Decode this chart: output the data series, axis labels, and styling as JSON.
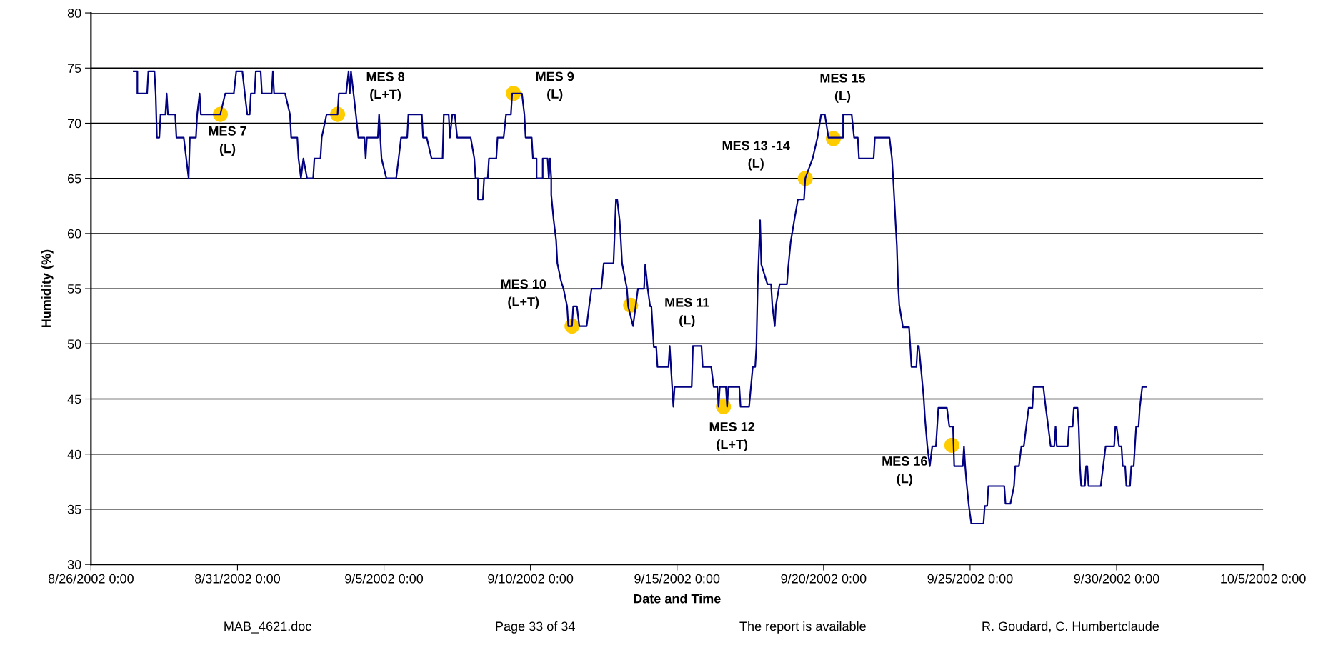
{
  "chart_data": {
    "type": "line",
    "xlabel": "Date and Time",
    "ylabel": "Humidity (%)",
    "xlim": [
      "2002-08-26",
      "2002-10-05"
    ],
    "xticks": [
      {
        "value": "2002-08-26",
        "label": "8/26/2002 0:00"
      },
      {
        "value": "2002-08-31",
        "label": "8/31/2002 0:00"
      },
      {
        "value": "2002-09-05",
        "label": "9/5/2002 0:00"
      },
      {
        "value": "2002-09-10",
        "label": "9/10/2002 0:00"
      },
      {
        "value": "2002-09-15",
        "label": "9/15/2002 0:00"
      },
      {
        "value": "2002-09-20",
        "label": "9/20/2002 0:00"
      },
      {
        "value": "2002-09-25",
        "label": "9/25/2002 0:00"
      },
      {
        "value": "2002-09-30",
        "label": "9/30/2002 0:00"
      },
      {
        "value": "2002-10-05",
        "label": "10/5/2002 0:00"
      }
    ],
    "ylim": [
      30,
      80
    ],
    "yticks": [
      30,
      35,
      40,
      45,
      50,
      55,
      60,
      65,
      70,
      75,
      80
    ],
    "grid": "y",
    "legend": false,
    "series": [
      {
        "color": "#000080",
        "marker": "none",
        "line_style": "solid",
        "x": [
          "2002-08-27T11:00",
          "2002-08-27T14:00",
          "2002-08-27T14:00",
          "2002-08-27T22:00",
          "2002-08-27T23:00",
          "2002-08-28T04:00",
          "2002-08-28T05:00",
          "2002-08-28T06:00",
          "2002-08-28T08:00",
          "2002-08-28T09:00",
          "2002-08-28T13:00",
          "2002-08-28T14:00",
          "2002-08-28T15:00",
          "2002-08-28T21:00",
          "2002-08-28T22:00",
          "2002-08-29T04:00",
          "2002-08-29T08:00",
          "2002-08-29T09:00",
          "2002-08-29T14:00",
          "2002-08-29T15:00",
          "2002-08-29T17:00",
          "2002-08-29T18:00",
          "2002-08-30T03:00",
          "2002-08-30T10:00",
          "2002-08-30T14:00",
          "2002-08-30T21:00",
          "2002-08-30T23:00",
          "2002-08-31T04:00",
          "2002-08-31T06:00",
          "2002-08-31T08:00",
          "2002-08-31T10:00",
          "2002-08-31T11:00",
          "2002-08-31T14:00",
          "2002-08-31T15:00",
          "2002-08-31T19:00",
          "2002-08-31T20:00",
          "2002-09-01T04:00",
          "2002-09-01T05:00",
          "2002-09-01T06:00",
          "2002-09-01T15:00",
          "2002-09-01T19:00",
          "2002-09-01T20:00",
          "2002-09-02T01:00",
          "2002-09-02T02:00",
          "2002-09-02T04:00",
          "2002-09-02T06:00",
          "2002-09-02T09:00",
          "2002-09-02T14:00",
          "2002-09-02T15:00",
          "2002-09-02T20:00",
          "2002-09-02T21:00",
          "2002-09-03T01:00",
          "2002-09-03T10:00",
          "2002-09-03T11:00",
          "2002-09-03T17:00",
          "2002-09-03T19:00",
          "2002-09-03T20:00",
          "2002-09-03T21:00",
          "2002-09-04T01:00",
          "2002-09-04T03:00",
          "2002-09-04T08:00",
          "2002-09-04T09:00",
          "2002-09-04T10:00",
          "2002-09-04T19:00",
          "2002-09-04T20:00",
          "2002-09-04T21:00",
          "2002-09-04T22:00",
          "2002-09-05T02:00",
          "2002-09-05T10:00",
          "2002-09-05T12:00",
          "2002-09-05T14:00",
          "2002-09-05T19:00",
          "2002-09-05T20:00",
          "2002-09-06T07:00",
          "2002-09-06T08:00",
          "2002-09-06T11:00",
          "2002-09-06T15:00",
          "2002-09-07T00:00",
          "2002-09-07T01:00",
          "2002-09-07T05:00",
          "2002-09-07T06:00",
          "2002-09-07T08:00",
          "2002-09-07T10:00",
          "2002-09-07T12:00",
          "2002-09-07T23:00",
          "2002-09-08T02:00",
          "2002-09-08T03:00",
          "2002-09-08T05:00",
          "2002-09-08T05:00",
          "2002-09-08T09:00",
          "2002-09-08T10:00",
          "2002-09-08T13:00",
          "2002-09-08T14:00",
          "2002-09-08T20:00",
          "2002-09-08T21:00",
          "2002-09-09T02:00",
          "2002-09-09T04:00",
          "2002-09-09T08:00",
          "2002-09-09T09:00",
          "2002-09-09T17:00",
          "2002-09-09T19:00",
          "2002-09-09T20:00",
          "2002-09-10T01:00",
          "2002-09-10T02:00",
          "2002-09-10T05:00",
          "2002-09-10T05:00",
          "2002-09-10T10:00",
          "2002-09-10T10:00",
          "2002-09-10T14:00",
          "2002-09-10T15:00",
          "2002-09-10T16:00",
          "2002-09-10T17:00",
          "2002-09-10T17:00",
          "2002-09-10T19:00",
          "2002-09-10T21:00",
          "2002-09-10T22:00",
          "2002-09-11T01:00",
          "2002-09-11T03:00",
          "2002-09-11T06:00",
          "2002-09-11T07:00",
          "2002-09-11T10:00",
          "2002-09-11T11:00",
          "2002-09-11T14:00",
          "2002-09-11T16:00",
          "2002-09-11T22:00",
          "2002-09-12T00:00",
          "2002-09-12T02:00",
          "2002-09-12T10:00",
          "2002-09-12T12:00",
          "2002-09-12T20:00",
          "2002-09-12T22:00",
          "2002-09-12T23:00",
          "2002-09-13T01:00",
          "2002-09-13T02:00",
          "2002-09-13T03:00",
          "2002-09-13T07:00",
          "2002-09-13T08:00",
          "2002-09-13T12:00",
          "2002-09-13T16:00",
          "2002-09-13T21:00",
          "2002-09-13T22:00",
          "2002-09-14T00:00",
          "2002-09-14T02:00",
          "2002-09-14T03:00",
          "2002-09-14T05:00",
          "2002-09-14T07:00",
          "2002-09-14T08:00",
          "2002-09-14T17:00",
          "2002-09-14T18:00",
          "2002-09-14T19:00",
          "2002-09-14T21:00",
          "2002-09-14T22:00",
          "2002-09-15T12:00",
          "2002-09-15T13:00",
          "2002-09-15T20:00",
          "2002-09-15T21:00",
          "2002-09-16T04:00",
          "2002-09-16T06:00",
          "2002-09-16T09:00",
          "2002-09-16T10:00",
          "2002-09-16T11:00",
          "2002-09-16T16:00",
          "2002-09-16T17:00",
          "2002-09-16T18:00",
          "2002-09-17T03:00",
          "2002-09-17T04:00",
          "2002-09-17T11:00",
          "2002-09-17T14:00",
          "2002-09-17T16:00",
          "2002-09-17T17:00",
          "2002-09-17T18:00",
          "2002-09-17T20:00",
          "2002-09-17T21:00",
          "2002-09-18T02:00",
          "2002-09-18T05:00",
          "2002-09-18T06:00",
          "2002-09-18T08:00",
          "2002-09-18T09:00",
          "2002-09-18T12:00",
          "2002-09-18T18:00",
          "2002-09-18T19:00",
          "2002-09-18T21:00",
          "2002-09-19T00:00",
          "2002-09-19T03:00",
          "2002-09-19T08:00",
          "2002-09-19T09:00",
          "2002-09-19T15:00",
          "2002-09-19T19:00",
          "2002-09-19T22:00",
          "2002-09-20T01:00",
          "2002-09-20T04:00",
          "2002-09-20T16:00",
          "2002-09-20T16:00",
          "2002-09-20T23:00",
          "2002-09-21T01:00",
          "2002-09-21T04:00",
          "2002-09-21T05:00",
          "2002-09-21T17:00",
          "2002-09-21T18:00",
          "2002-09-22T06:00",
          "2002-09-22T08:00",
          "2002-09-22T09:00",
          "2002-09-22T11:00",
          "2002-09-22T12:00",
          "2002-09-22T13:00",
          "2002-09-22T14:00",
          "2002-09-22T17:00",
          "2002-09-22T22:00",
          "2002-09-22T23:00",
          "2002-09-23T00:00",
          "2002-09-23T04:00",
          "2002-09-23T05:00",
          "2002-09-23T06:00",
          "2002-09-23T08:00",
          "2002-09-23T10:00",
          "2002-09-23T11:00",
          "2002-09-23T13:00",
          "2002-09-23T15:00",
          "2002-09-23T17:00",
          "2002-09-23T20:00",
          "2002-09-23T22:00",
          "2002-09-24T05:00",
          "2002-09-24T07:00",
          "2002-09-24T10:00",
          "2002-09-24T11:00",
          "2002-09-24T18:00",
          "2002-09-24T19:00",
          "2002-09-24T20:00",
          "2002-09-24T21:00",
          "2002-09-24T23:00",
          "2002-09-25T01:00",
          "2002-09-25T11:00",
          "2002-09-25T12:00",
          "2002-09-25T14:00",
          "2002-09-25T15:00",
          "2002-09-26T04:00",
          "2002-09-26T05:00",
          "2002-09-26T09:00",
          "2002-09-26T12:00",
          "2002-09-26T13:00",
          "2002-09-26T16:00",
          "2002-09-26T18:00",
          "2002-09-26T20:00",
          "2002-09-26T22:00",
          "2002-09-27T00:00",
          "2002-09-27T03:00",
          "2002-09-27T04:00",
          "2002-09-27T12:00",
          "2002-09-27T14:00",
          "2002-09-27T16:00",
          "2002-09-27T18:00",
          "2002-09-27T21:00",
          "2002-09-27T22:00",
          "2002-09-27T23:00",
          "2002-09-28T08:00",
          "2002-09-28T09:00",
          "2002-09-28T12:00",
          "2002-09-28T13:00",
          "2002-09-28T16:00",
          "2002-09-28T17:00",
          "2002-09-28T18:00",
          "2002-09-28T19:00",
          "2002-09-28T22:00",
          "2002-09-28T23:00",
          "2002-09-29T00:00",
          "2002-09-29T01:00",
          "2002-09-29T11:00",
          "2002-09-29T13:00",
          "2002-09-29T15:00",
          "2002-09-29T22:00",
          "2002-09-29T23:00",
          "2002-09-30T00:00",
          "2002-09-30T02:00",
          "2002-09-30T04:00",
          "2002-09-30T05:00",
          "2002-09-30T07:00",
          "2002-09-30T08:00",
          "2002-09-30T11:00",
          "2002-09-30T12:00",
          "2002-09-30T14:00",
          "2002-09-30T15:00",
          "2002-09-30T16:00",
          "2002-09-30T18:00",
          "2002-09-30T19:00",
          "2002-09-30T21:00",
          "2002-10-01T00:00"
        ],
        "values": [
          74.7,
          74.7,
          72.7,
          72.7,
          74.7,
          74.7,
          72.7,
          68.7,
          68.7,
          70.8,
          70.8,
          72.7,
          70.8,
          70.8,
          68.7,
          68.7,
          65.0,
          68.7,
          68.7,
          70.8,
          72.7,
          70.8,
          70.8,
          70.8,
          72.7,
          72.7,
          74.7,
          74.7,
          72.7,
          70.8,
          70.8,
          72.7,
          72.7,
          74.7,
          74.7,
          72.7,
          72.7,
          74.7,
          72.7,
          72.7,
          70.8,
          68.7,
          68.7,
          66.8,
          65.0,
          66.8,
          65.0,
          65.0,
          66.8,
          66.8,
          68.7,
          70.8,
          70.8,
          72.7,
          72.7,
          74.7,
          72.7,
          74.7,
          70.8,
          68.7,
          68.7,
          66.8,
          68.7,
          68.7,
          70.8,
          68.7,
          66.8,
          65.0,
          65.0,
          66.8,
          68.7,
          68.7,
          70.8,
          70.8,
          68.7,
          68.7,
          66.8,
          66.8,
          70.8,
          70.8,
          68.7,
          70.8,
          70.8,
          68.7,
          68.7,
          66.8,
          65.0,
          65.0,
          63.1,
          63.1,
          65.0,
          65.0,
          66.8,
          66.8,
          68.7,
          68.7,
          70.8,
          70.8,
          72.7,
          72.7,
          70.8,
          68.7,
          68.7,
          66.8,
          66.8,
          65.0,
          65.0,
          66.8,
          66.8,
          65.0,
          66.8,
          65.0,
          63.5,
          61.2,
          59.4,
          57.3,
          55.7,
          55.0,
          53.4,
          51.6,
          51.6,
          53.4,
          53.4,
          51.6,
          51.6,
          53.4,
          55.0,
          55.0,
          57.3,
          57.3,
          63.1,
          63.1,
          61.2,
          59.4,
          57.3,
          55.0,
          53.4,
          51.6,
          55.0,
          55.0,
          57.2,
          55.0,
          53.4,
          53.4,
          49.7,
          49.7,
          47.9,
          47.9,
          49.8,
          47.9,
          44.3,
          46.1,
          46.1,
          49.8,
          49.8,
          47.9,
          47.9,
          46.1,
          46.1,
          44.3,
          46.1,
          46.1,
          44.3,
          46.1,
          46.1,
          44.3,
          44.3,
          47.9,
          47.9,
          49.8,
          55.1,
          61.2,
          57.2,
          55.4,
          55.4,
          53.5,
          51.6,
          53.5,
          55.4,
          55.4,
          56.9,
          59.2,
          61.2,
          63.1,
          63.1,
          65.0,
          66.8,
          68.7,
          70.8,
          70.8,
          68.7,
          68.7,
          70.8,
          70.8,
          68.7,
          68.7,
          66.8,
          66.8,
          68.7,
          68.7,
          66.8,
          65.0,
          60.9,
          58.9,
          55.4,
          53.5,
          51.5,
          51.5,
          49.8,
          47.9,
          47.9,
          49.8,
          49.8,
          47.5,
          45.1,
          43.3,
          40.7,
          38.9,
          40.7,
          40.7,
          44.2,
          44.2,
          42.5,
          42.5,
          38.9,
          38.9,
          40.7,
          38.9,
          37.5,
          35.3,
          33.7,
          33.7,
          35.3,
          35.3,
          37.1,
          37.1,
          35.5,
          35.5,
          37.1,
          38.9,
          38.9,
          40.7,
          40.7,
          42.5,
          44.2,
          44.2,
          46.1,
          46.1,
          44.2,
          42.5,
          40.7,
          40.7,
          42.5,
          40.7,
          40.7,
          42.5,
          42.5,
          44.2,
          44.2,
          42.5,
          38.9,
          37.1,
          37.1,
          38.9,
          38.9,
          37.1,
          37.1,
          38.9,
          40.7,
          40.7,
          42.5,
          42.5,
          40.7,
          40.7,
          38.9,
          38.9,
          37.1,
          37.1,
          38.9,
          38.9,
          40.7,
          42.5,
          42.5,
          44.2,
          46.1,
          46.1
        ]
      },
      {
        "type": "scatter",
        "color": "#ffcc00",
        "marker": "circle",
        "x": [
          "2002-08-30T10:00",
          "2002-09-03T10:00",
          "2002-09-09T10:00",
          "2002-09-11T10:00",
          "2002-09-13T10:00",
          "2002-09-16T14:00",
          "2002-09-19T09:00",
          "2002-09-20T08:00",
          "2002-09-24T09:00"
        ],
        "values": [
          70.8,
          70.8,
          72.7,
          51.6,
          53.5,
          44.3,
          65.0,
          68.6,
          40.8
        ]
      }
    ],
    "annotations": [
      "MES 7\n(L)",
      "MES 8\n(L+T)",
      "MES 9\n(L)",
      "MES 10\n(L+T)",
      "MES 11\n(L)",
      "MES 12\n(L+T)",
      "MES 13 -14\n(L)",
      "MES 15\n(L)",
      "MES 16\n(L)",
      "MAB_4621.doc",
      "Page 33 of 34",
      "The report is available",
      "R. Goudard, C. Humbertclaude"
    ]
  }
}
